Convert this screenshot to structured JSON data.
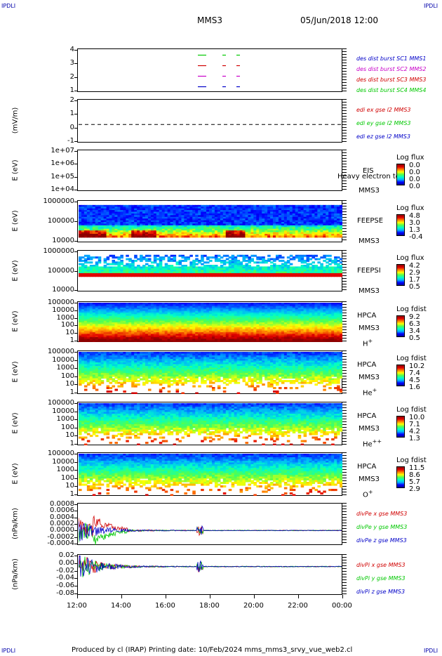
{
  "corner_label": "IPDLI",
  "header": {
    "spacecraft": "MMS3",
    "datetime": "05/Jun/2018 12:00"
  },
  "x_ticks": [
    "12:00",
    "14:00",
    "16:00",
    "18:00",
    "20:00",
    "22:00",
    "00:00"
  ],
  "footer": {
    "text": "Produced by cl (IRAP)   Printing date: 10/Feb/2024   mms_mms3_srvy_vue_web2.cl"
  },
  "colors": {
    "sc1": "#0000c8",
    "sc2": "#c800c8",
    "sc3": "#d00000",
    "sc4": "#00c800"
  },
  "chart_data": [
    {
      "type": "scatter",
      "name": "burst",
      "y_ticks": [
        "4",
        "3",
        "2",
        "1"
      ],
      "ylim": [
        0.5,
        4.5
      ],
      "legend": [
        "des dist burst SC1 MMS1",
        "des dist burst SC2 MMS2",
        "des dist burst SC3 MMS3",
        "des dist burst SC4 MMS4"
      ]
    },
    {
      "type": "line",
      "name": "edi",
      "ylabel": "(mV/m)",
      "y_ticks": [
        "2",
        "1",
        "0",
        "-1"
      ],
      "ylim": [
        -1.5,
        2
      ],
      "legend": [
        "edi ex gse l2 MMS3",
        "edi ey gse l2 MMS3",
        "edi ez gse l2 MMS3"
      ]
    },
    {
      "type": "heatmap",
      "name": "eis",
      "ylabel": "E (eV)",
      "y_ticks": [
        "1e+07",
        "1e+06",
        "1e+05",
        "1e+04"
      ],
      "instrument": [
        "EIS",
        "MMS3"
      ],
      "overlay_text": "Heavy electron tof",
      "colorbar": {
        "title": "Log flux",
        "values": [
          "0.0",
          "0.0",
          "0.0",
          "0.0"
        ]
      }
    },
    {
      "type": "heatmap",
      "name": "feepse",
      "ylabel": "E (eV)",
      "y_ticks": [
        "1000000",
        "100000",
        "10000"
      ],
      "instrument": [
        "FEEPSE",
        "MMS3"
      ],
      "colorbar": {
        "title": "Log flux",
        "values": [
          "4.8",
          "3.0",
          "1.3",
          "-0.4"
        ]
      }
    },
    {
      "type": "heatmap",
      "name": "feepsi",
      "ylabel": "E (eV)",
      "y_ticks": [
        "1000000",
        "100000",
        "10000"
      ],
      "instrument": [
        "FEEPSI",
        "MMS3"
      ],
      "colorbar": {
        "title": "Log flux",
        "values": [
          "4.2",
          "2.9",
          "1.7",
          "0.5"
        ]
      }
    },
    {
      "type": "heatmap",
      "name": "hpca-h",
      "ylabel": "E (eV)",
      "y_ticks": [
        "100000",
        "10000",
        "1000",
        "100",
        "10",
        "1"
      ],
      "instrument": [
        "HPCA",
        "MMS3"
      ],
      "species": {
        "base": "H",
        "sup": "+"
      },
      "colorbar": {
        "title": "Log fdist",
        "values": [
          "9.2",
          "6.3",
          "3.4",
          "0.5"
        ]
      }
    },
    {
      "type": "heatmap",
      "name": "hpca-he",
      "ylabel": "E (eV)",
      "y_ticks": [
        "100000",
        "10000",
        "1000",
        "100",
        "10",
        "1"
      ],
      "instrument": [
        "HPCA",
        "MMS3"
      ],
      "species": {
        "base": "He",
        "sup": "+"
      },
      "colorbar": {
        "title": "Log fdist",
        "values": [
          "10.2",
          "7.4",
          "4.5",
          "1.6"
        ]
      }
    },
    {
      "type": "heatmap",
      "name": "hpca-hepp",
      "ylabel": "E (eV)",
      "y_ticks": [
        "100000",
        "10000",
        "1000",
        "100",
        "10",
        "1"
      ],
      "instrument": [
        "HPCA",
        "MMS3"
      ],
      "species": {
        "base": "He",
        "sup": "++"
      },
      "colorbar": {
        "title": "Log fdist",
        "values": [
          "10.0",
          "7.1",
          "4.2",
          "1.3"
        ]
      }
    },
    {
      "type": "heatmap",
      "name": "hpca-o",
      "ylabel": "E (eV)",
      "y_ticks": [
        "100000",
        "10000",
        "1000",
        "100",
        "10",
        "1"
      ],
      "instrument": [
        "HPCA",
        "MMS3"
      ],
      "species": {
        "base": "O",
        "sup": "+"
      },
      "colorbar": {
        "title": "Log fdist",
        "values": [
          "11.5",
          "8.6",
          "5.7",
          "2.9"
        ]
      }
    },
    {
      "type": "line",
      "name": "divpe",
      "ylabel": "(nPa/km)",
      "y_ticks": [
        "0.0008",
        "0.0006",
        "0.0004",
        "0.0002",
        "0.0000",
        "-0.0002",
        "-0.0004"
      ],
      "ylim": [
        -0.0005,
        0.0009
      ],
      "legend": [
        "divPe x gse MMS3",
        "divPe y gse MMS3",
        "divPe z gse MMS3"
      ]
    },
    {
      "type": "line",
      "name": "divpi",
      "ylabel": "(nPa/km)",
      "y_ticks": [
        "0.02",
        "0.00",
        "-0.02",
        "-0.04",
        "-0.06",
        "-0.08"
      ],
      "ylim": [
        -0.09,
        0.035
      ],
      "legend": [
        "divPi x gse MMS3",
        "divPi y gse MMS3",
        "divPi z gse MMS3"
      ]
    }
  ]
}
